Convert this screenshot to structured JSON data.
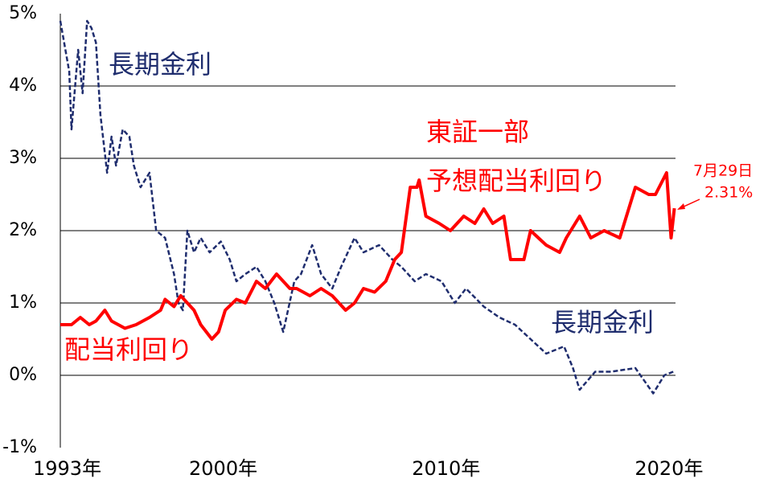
{
  "chart_data": {
    "type": "line",
    "xlim": [
      1993,
      2020.6
    ],
    "xticks": [
      {
        "value": 1993,
        "label": "1993年"
      },
      {
        "value": 2000,
        "label": "2000年"
      },
      {
        "value": 2010,
        "label": "2010年"
      },
      {
        "value": 2020,
        "label": "2020年"
      }
    ],
    "ylim": [
      -1,
      5
    ],
    "yticks": [
      {
        "value": -1,
        "label": "-1%"
      },
      {
        "value": 0,
        "label": "0%"
      },
      {
        "value": 1,
        "label": "1%"
      },
      {
        "value": 2,
        "label": "2%"
      },
      {
        "value": 3,
        "label": "3%"
      },
      {
        "value": 4,
        "label": "4%"
      },
      {
        "value": 5,
        "label": "5%"
      }
    ],
    "grid": true,
    "series": [
      {
        "color": "#1f2d6e",
        "dashed": true,
        "x": [
          1993.0,
          1993.4,
          1993.5,
          1993.8,
          1994.0,
          1994.2,
          1994.4,
          1994.6,
          1994.8,
          1995.1,
          1995.3,
          1995.5,
          1995.8,
          1996.1,
          1996.3,
          1996.6,
          1997.0,
          1997.3,
          1997.7,
          1998.1,
          1998.3,
          1998.5,
          1998.7,
          1999.0,
          1999.3,
          1999.7,
          2000.2,
          2000.6,
          2000.9,
          2001.3,
          2001.8,
          2002.2,
          2002.6,
          2003.0,
          2003.5,
          2003.8,
          2004.3,
          2004.7,
          2005.2,
          2005.6,
          2006.2,
          2006.6,
          2007.3,
          2007.9,
          2008.3,
          2008.9,
          2009.4,
          2010.1,
          2010.7,
          2011.2,
          2012.0,
          2012.7,
          2013.4,
          2014.1,
          2014.8,
          2015.6,
          2016.0,
          2016.3,
          2017.0,
          2017.7,
          2018.8,
          2019.6,
          2020.1,
          2020.5
        ],
        "values": [
          4.9,
          4.2,
          3.4,
          4.5,
          3.9,
          4.9,
          4.8,
          4.6,
          3.6,
          2.8,
          3.3,
          2.9,
          3.4,
          3.3,
          2.9,
          2.6,
          2.8,
          2.0,
          1.9,
          1.4,
          1.0,
          0.9,
          2.0,
          1.7,
          1.9,
          1.7,
          1.85,
          1.6,
          1.3,
          1.4,
          1.5,
          1.3,
          1.0,
          0.6,
          1.3,
          1.4,
          1.8,
          1.4,
          1.2,
          1.5,
          1.9,
          1.7,
          1.8,
          1.6,
          1.5,
          1.3,
          1.4,
          1.3,
          1.0,
          1.2,
          0.95,
          0.8,
          0.7,
          0.5,
          0.3,
          0.4,
          0.1,
          -0.2,
          0.05,
          0.05,
          0.1,
          -0.25,
          0.0,
          0.05
        ]
      },
      {
        "color": "#ff0000",
        "dashed": false,
        "x": [
          1993.0,
          1993.5,
          1993.9,
          1994.3,
          1994.6,
          1995.0,
          1995.3,
          1995.9,
          1996.4,
          1997.0,
          1997.5,
          1997.7,
          1998.1,
          1998.4,
          1999.0,
          1999.3,
          1999.8,
          2000.1,
          2000.4,
          2000.9,
          2001.3,
          2001.8,
          2002.2,
          2002.7,
          2003.3,
          2003.6,
          2004.2,
          2004.7,
          2005.2,
          2005.8,
          2006.2,
          2006.6,
          2007.1,
          2007.6,
          2008.0,
          2008.3,
          2008.7,
          2009.0,
          2009.1,
          2009.4,
          2010.0,
          2010.5,
          2011.1,
          2011.6,
          2012.0,
          2012.4,
          2012.9,
          2013.2,
          2013.8,
          2014.1,
          2014.8,
          2015.4,
          2015.7,
          2016.3,
          2016.8,
          2017.4,
          2018.1,
          2018.8,
          2019.4,
          2019.7,
          2020.2,
          2020.4,
          2020.55
        ],
        "values": [
          0.7,
          0.7,
          0.8,
          0.7,
          0.75,
          0.9,
          0.75,
          0.65,
          0.7,
          0.8,
          0.9,
          1.05,
          0.95,
          1.1,
          0.9,
          0.7,
          0.5,
          0.6,
          0.9,
          1.05,
          1.0,
          1.3,
          1.2,
          1.4,
          1.2,
          1.2,
          1.1,
          1.2,
          1.1,
          0.9,
          1.0,
          1.2,
          1.15,
          1.3,
          1.6,
          1.7,
          2.6,
          2.6,
          2.7,
          2.2,
          2.1,
          2.0,
          2.2,
          2.1,
          2.3,
          2.1,
          2.2,
          1.6,
          1.6,
          2.0,
          1.8,
          1.7,
          1.9,
          2.2,
          1.9,
          2.0,
          1.9,
          2.6,
          2.5,
          2.5,
          2.8,
          1.9,
          2.31
        ]
      }
    ],
    "annotations": [
      {
        "text": "長期金利",
        "color": "#1f2d6e"
      },
      {
        "text": "長期金利",
        "color": "#1f2d6e"
      },
      {
        "text": "東証一部",
        "color": "#ff0000"
      },
      {
        "text": "予想配当利回り",
        "color": "#ff0000"
      },
      {
        "text": "配当利回り",
        "color": "#ff0000"
      },
      {
        "text": "7月29日",
        "color": "#ff0000"
      },
      {
        "text": "2.31%",
        "color": "#ff0000"
      }
    ]
  }
}
